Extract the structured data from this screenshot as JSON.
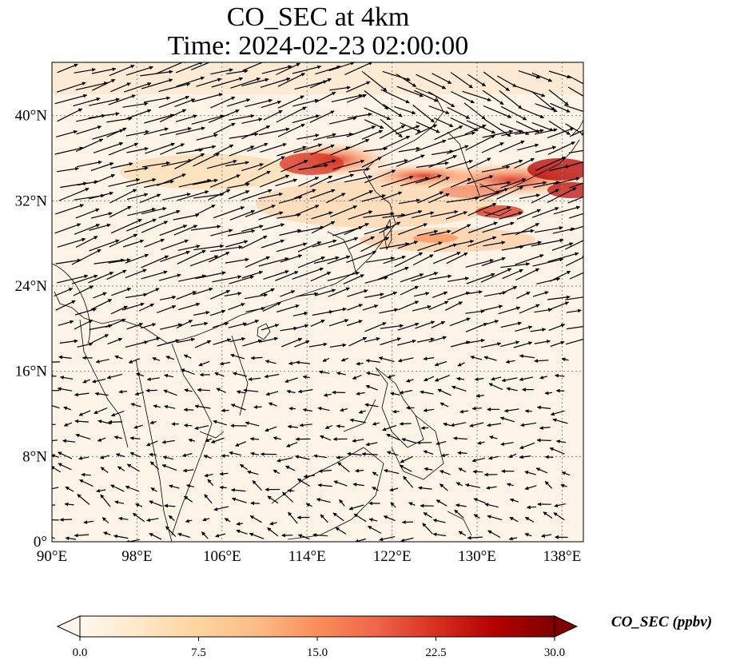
{
  "title_line1": "CO_SEC at 4km",
  "title_line2": "Time: 2024-02-23 02:00:00",
  "map": {
    "lon_range": [
      90,
      140
    ],
    "lat_range": [
      0,
      45
    ],
    "lon_ticks": [
      "90°E",
      "98°E",
      "106°E",
      "114°E",
      "122°E",
      "130°E",
      "138°E"
    ],
    "lon_tick_values": [
      90,
      98,
      106,
      114,
      122,
      130,
      138
    ],
    "lat_ticks": [
      "0°",
      "8°N",
      "16°N",
      "24°N",
      "32°N",
      "40°N"
    ],
    "lat_tick_values": [
      0,
      8,
      16,
      24,
      32,
      40
    ],
    "gridlines": true,
    "overlay": "wind vectors"
  },
  "colorbar": {
    "label": "CO_SEC (ppbv)",
    "ticks": [
      "0.0",
      "7.5",
      "15.0",
      "22.5",
      "30.0"
    ],
    "tick_values": [
      0,
      7.5,
      15,
      22.5,
      30
    ],
    "range": [
      0,
      30
    ],
    "extend": "both",
    "colormap": "OrRd",
    "colors": [
      "#fff7ec",
      "#fee8c8",
      "#fdd49e",
      "#fdbb84",
      "#fc8d59",
      "#ef6548",
      "#d7301f",
      "#b30000",
      "#7f0000"
    ]
  }
}
